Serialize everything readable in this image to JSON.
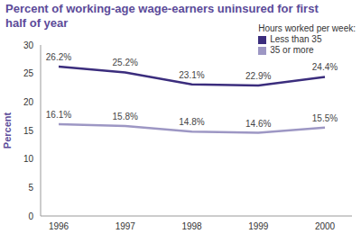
{
  "chart_data": {
    "type": "line",
    "title": "Percent of working-age wage-earners uninsured for first half of year",
    "y_label": "Percent",
    "legend_title": "Hours worked per week:",
    "legend": "top-right",
    "grid": false,
    "data_labels": true,
    "categories": [
      "1996",
      "1997",
      "1998",
      "1999",
      "2000"
    ],
    "ylim": [
      0,
      30
    ],
    "yticks": [
      0,
      5,
      10,
      15,
      20,
      25,
      30
    ],
    "series": [
      {
        "name": "Less than 35",
        "color": "#3b2d7d",
        "values": [
          26.2,
          25.2,
          23.1,
          22.9,
          24.4
        ],
        "value_labels": [
          "26.2%",
          "25.2%",
          "23.1%",
          "22.9%",
          "24.4%"
        ]
      },
      {
        "name": "35 or more",
        "color": "#9d97c4",
        "values": [
          16.1,
          15.8,
          14.8,
          14.6,
          15.5
        ],
        "value_labels": [
          "16.1%",
          "15.8%",
          "14.8%",
          "14.6%",
          "15.5%"
        ]
      }
    ]
  }
}
